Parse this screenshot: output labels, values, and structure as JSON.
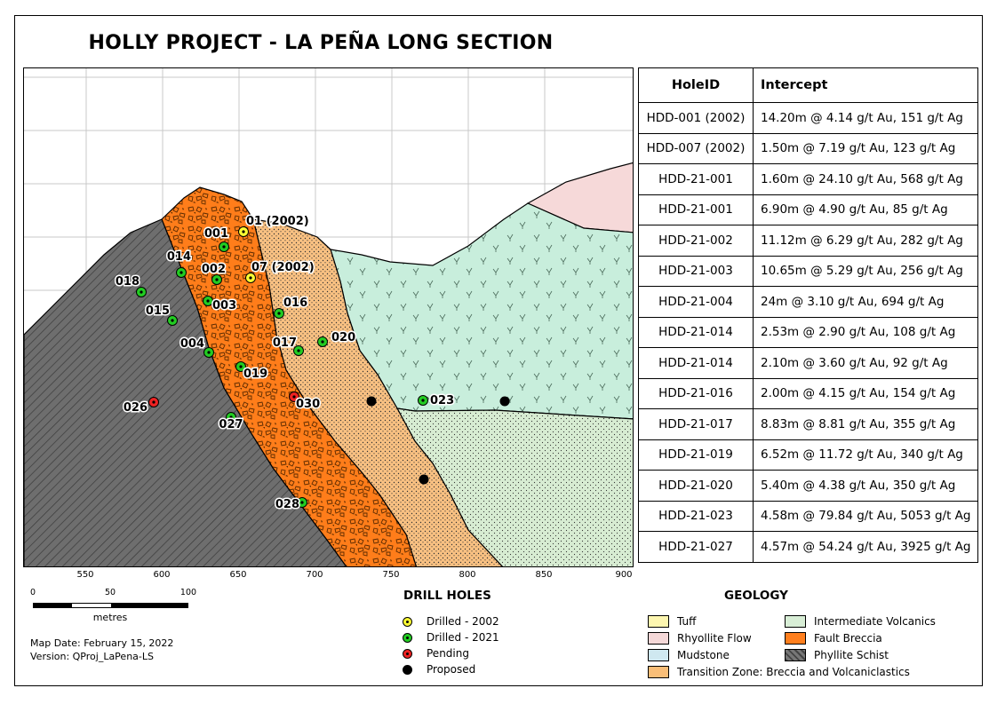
{
  "title": "HOLLY PROJECT  - LA PEÑA LONG SECTION",
  "x_axis": {
    "ticks": [
      "550",
      "600",
      "650",
      "700",
      "750",
      "800",
      "850",
      "900"
    ]
  },
  "drill_holes": [
    {
      "label": "01 (2002)",
      "status": "Drilled - 2002"
    },
    {
      "label": "07 (2002)",
      "status": "Drilled - 2002"
    },
    {
      "label": "001",
      "status": "Drilled - 2021"
    },
    {
      "label": "002",
      "status": "Drilled - 2021"
    },
    {
      "label": "003",
      "status": "Drilled - 2021"
    },
    {
      "label": "004",
      "status": "Drilled - 2021"
    },
    {
      "label": "014",
      "status": "Drilled - 2021"
    },
    {
      "label": "015",
      "status": "Drilled - 2021"
    },
    {
      "label": "016",
      "status": "Drilled - 2021"
    },
    {
      "label": "017",
      "status": "Drilled - 2021"
    },
    {
      "label": "018",
      "status": "Drilled - 2021"
    },
    {
      "label": "019",
      "status": "Drilled - 2021"
    },
    {
      "label": "020",
      "status": "Drilled - 2021"
    },
    {
      "label": "023",
      "status": "Drilled - 2021"
    },
    {
      "label": "027",
      "status": "Drilled - 2021"
    },
    {
      "label": "028",
      "status": "Drilled - 2021"
    },
    {
      "label": "026",
      "status": "Pending"
    },
    {
      "label": "030",
      "status": "Pending"
    },
    {
      "label": "",
      "status": "Proposed"
    },
    {
      "label": "",
      "status": "Proposed"
    },
    {
      "label": "",
      "status": "Proposed"
    }
  ],
  "intercepts": {
    "headers": [
      "HoleID",
      "Intercept"
    ],
    "rows": [
      [
        "HDD-001 (2002)",
        "14.20m @ 4.14 g/t Au, 151 g/t Ag"
      ],
      [
        "HDD-007 (2002)",
        "1.50m @ 7.19 g/t Au, 123 g/t Ag"
      ],
      [
        "HDD-21-001",
        "1.60m @ 24.10 g/t Au, 568 g/t Ag"
      ],
      [
        "HDD-21-001",
        "6.90m @ 4.90 g/t Au, 85 g/t Ag"
      ],
      [
        "HDD-21-002",
        "11.12m @ 6.29 g/t Au, 282 g/t Ag"
      ],
      [
        "HDD-21-003",
        "10.65m @ 5.29 g/t Au, 256 g/t Ag"
      ],
      [
        "HDD-21-004",
        "24m @ 3.10 g/t Au, 694 g/t Ag"
      ],
      [
        "HDD-21-014",
        "2.53m @ 2.90 g/t Au, 108 g/t Ag"
      ],
      [
        "HDD-21-014",
        "2.10m @ 3.60 g/t Au, 92 g/t Ag"
      ],
      [
        "HDD-21-016",
        "2.00m @ 4.15 g/t Au, 154 g/t Ag"
      ],
      [
        "HDD-21-017",
        "8.83m @ 8.81 g/t Au, 355 g/t Ag"
      ],
      [
        "HDD-21-019",
        "6.52m @ 11.72 g/t Au, 340 g/t Ag"
      ],
      [
        "HDD-21-020",
        "5.40m @ 4.38 g/t Au, 350 g/t Ag"
      ],
      [
        "HDD-21-023",
        "4.58m @ 79.84 g/t Au, 5053 g/t Ag"
      ],
      [
        "HDD-21-027",
        "4.57m @ 54.24 g/t Au, 3925 g/t Ag"
      ]
    ]
  },
  "scale_bar": {
    "labels": [
      "0",
      "50",
      "100"
    ],
    "unit": "metres"
  },
  "map_info": {
    "date": "Map Date: February 15, 2022",
    "version": "Version: QProj_LaPena-LS"
  },
  "drill_legend": {
    "title": "DRILL HOLES",
    "items": [
      {
        "label": "Drilled - 2002",
        "color": "#ffff33"
      },
      {
        "label": "Drilled - 2021",
        "color": "#22cc22"
      },
      {
        "label": "Pending",
        "color": "#ee2222"
      },
      {
        "label": "Proposed",
        "color": "#000000"
      }
    ]
  },
  "geology_legend": {
    "title": "GEOLOGY",
    "items": [
      {
        "label": "Tuff",
        "color": "#fdf6b0",
        "pattern": "tuff"
      },
      {
        "label": "Rhyollite Flow",
        "color": "#f5d8d8",
        "pattern": "none"
      },
      {
        "label": "Mudstone",
        "color": "#cfe8f0",
        "pattern": "dots"
      },
      {
        "label": "Transition Zone: Breccia and Volcaniclastics",
        "color": "#f9be78",
        "pattern": "dots"
      },
      {
        "label": "Intermediate Volcanics",
        "color": "#d8eed6",
        "pattern": "dots"
      },
      {
        "label": "Fault Breccia",
        "color": "#ff7f1e",
        "pattern": "breccia"
      },
      {
        "label": "Phyllite Schist",
        "color": "#666666",
        "pattern": "hatch"
      }
    ]
  },
  "colors": {
    "phyllite": "#6b6b6b",
    "fault_breccia": "#ff7d1a",
    "transition": "#f9c182",
    "intermediate": "#d5ecd0",
    "tuff_volcanic": "#c9eedd",
    "rhyolite": "#f6d9d9"
  }
}
